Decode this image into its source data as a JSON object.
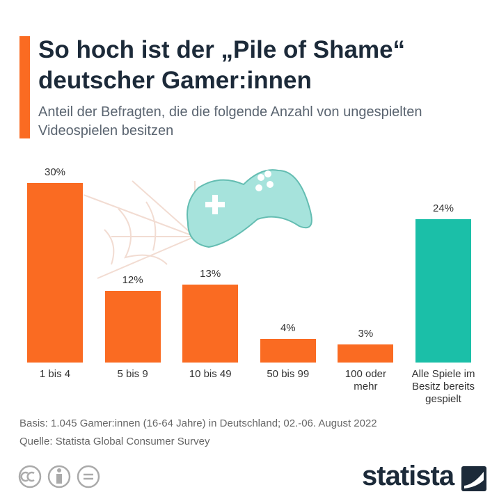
{
  "chart_data": {
    "type": "bar",
    "title": "So hoch ist der „Pile of Shame“ deutscher Gamer:innen",
    "subtitle": "Anteil der Befragten, die die folgende Anzahl von ungespielten Videospielen besitzen",
    "categories": [
      "1 bis 4",
      "5 bis 9",
      "10 bis 49",
      "50 bis 99",
      "100 oder mehr",
      "Alle Spiele im Besitz bereits gespielt"
    ],
    "values": [
      30,
      12,
      13,
      4,
      3,
      24
    ],
    "value_labels": [
      "30%",
      "12%",
      "13%",
      "4%",
      "3%",
      "24%"
    ],
    "colors": [
      "#fa6b22",
      "#fa6b22",
      "#fa6b22",
      "#fa6b22",
      "#fa6b22",
      "#1bbfa8"
    ],
    "notes": [
      "Basis: 1.045 Gamer:innen (16-64 Jahre) in Deutschland; 02.-06. August 2022",
      "Quelle: Statista Global Consumer Survey"
    ],
    "brand": "statista"
  }
}
